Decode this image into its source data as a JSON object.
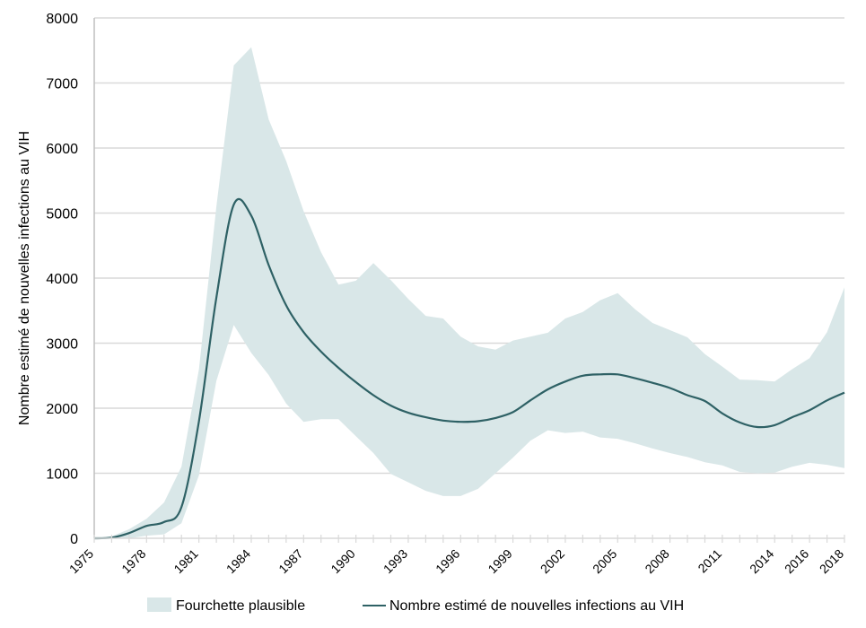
{
  "chart_data": {
    "type": "area",
    "title": "",
    "xlabel": "",
    "ylabel": "Nombre estimé de nouvelles infections au VIH",
    "ylim": [
      0,
      8000
    ],
    "xlim": [
      1975,
      2018
    ],
    "grid": true,
    "legend_position": "bottom",
    "y_ticks": [
      0,
      1000,
      2000,
      3000,
      4000,
      5000,
      6000,
      7000,
      8000
    ],
    "x_tick_labels": [
      "1975",
      "1978",
      "1981",
      "1984",
      "1987",
      "1990",
      "1993",
      "1996",
      "1999",
      "2002",
      "2005",
      "2008",
      "2011",
      "2014",
      "2016",
      "2018"
    ],
    "x": [
      1975,
      1976,
      1977,
      1978,
      1979,
      1980,
      1981,
      1982,
      1983,
      1984,
      1985,
      1986,
      1987,
      1988,
      1989,
      1990,
      1991,
      1992,
      1993,
      1994,
      1995,
      1996,
      1997,
      1998,
      1999,
      2000,
      2001,
      2002,
      2003,
      2004,
      2005,
      2006,
      2007,
      2008,
      2009,
      2010,
      2011,
      2012,
      2013,
      2014,
      2015,
      2016,
      2017,
      2018
    ],
    "series": [
      {
        "name": "Fourchette plausible",
        "kind": "band",
        "color": "#d9e7e8",
        "upper": [
          0,
          30,
          140,
          300,
          550,
          1100,
          2600,
          5100,
          7270,
          7550,
          6440,
          5800,
          5030,
          4400,
          3900,
          3960,
          4230,
          3970,
          3680,
          3420,
          3380,
          3100,
          2950,
          2900,
          3040,
          3100,
          3160,
          3380,
          3480,
          3660,
          3770,
          3520,
          3310,
          3200,
          3090,
          2830,
          2640,
          2440,
          2430,
          2410,
          2600,
          2770,
          3170,
          3860
        ],
        "lower": [
          0,
          0,
          0,
          40,
          60,
          230,
          970,
          2420,
          3280,
          2850,
          2510,
          2070,
          1790,
          1830,
          1830,
          1570,
          1310,
          990,
          860,
          730,
          650,
          650,
          760,
          1000,
          1240,
          1500,
          1660,
          1620,
          1640,
          1550,
          1530,
          1460,
          1380,
          1310,
          1250,
          1170,
          1120,
          1020,
          1000,
          1010,
          1100,
          1160,
          1130,
          1080
        ]
      },
      {
        "name": "Nombre estimé de nouvelles infections au VIH",
        "kind": "line",
        "color": "#2e6165",
        "values": [
          0,
          10,
          80,
          190,
          250,
          480,
          1800,
          3700,
          5130,
          4960,
          4200,
          3580,
          3170,
          2870,
          2620,
          2400,
          2200,
          2040,
          1930,
          1860,
          1810,
          1790,
          1800,
          1850,
          1940,
          2120,
          2290,
          2410,
          2500,
          2520,
          2520,
          2460,
          2390,
          2310,
          2200,
          2110,
          1920,
          1780,
          1710,
          1740,
          1860,
          1970,
          2120,
          2240
        ]
      }
    ]
  },
  "legend": {
    "band_label": "Fourchette plausible",
    "line_label": "Nombre estimé de nouvelles infections au VIH"
  },
  "colors": {
    "band": "#d9e7e8",
    "line": "#2e6165",
    "grid": "#d9d9d9",
    "axis": "#bfbfbf"
  }
}
